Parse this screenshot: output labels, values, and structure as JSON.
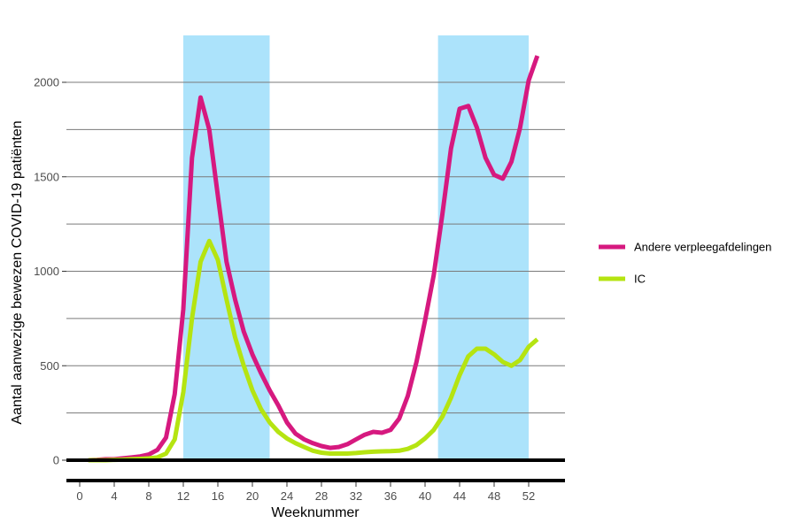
{
  "chart_data": {
    "type": "line",
    "title": "",
    "xlabel": "Weeknummer",
    "ylabel": "Aantal aanwezige bewezen COVID-19 patiënten",
    "xlim": [
      -1.5,
      55
    ],
    "ylim": [
      -120,
      2250
    ],
    "xticks": [
      0,
      4,
      8,
      12,
      16,
      20,
      24,
      28,
      32,
      36,
      40,
      44,
      48,
      52
    ],
    "yticks": [
      0,
      500,
      1000,
      1500,
      2000
    ],
    "grid_minor_y": [
      250,
      750,
      1250,
      1750
    ],
    "shaded_periods": [
      {
        "start": 12,
        "end": 22
      },
      {
        "start": 41.5,
        "end": 52
      }
    ],
    "legend_position": "right",
    "series": [
      {
        "name": "Andere verpleegafdelingen",
        "color": "#d6197f",
        "x": [
          1,
          2,
          3,
          4,
          5,
          6,
          7,
          8,
          9,
          10,
          11,
          12,
          13,
          14,
          15,
          16,
          17,
          18,
          19,
          20,
          21,
          22,
          23,
          24,
          25,
          26,
          27,
          28,
          29,
          30,
          31,
          32,
          33,
          34,
          35,
          36,
          37,
          38,
          39,
          40,
          41,
          42,
          43,
          44,
          45,
          46,
          47,
          48,
          49,
          50,
          51,
          52,
          53
        ],
        "values": [
          0,
          2,
          5,
          5,
          10,
          15,
          20,
          30,
          55,
          120,
          350,
          800,
          1600,
          1920,
          1750,
          1400,
          1050,
          850,
          680,
          560,
          460,
          370,
          290,
          200,
          140,
          110,
          90,
          75,
          65,
          70,
          85,
          110,
          135,
          150,
          145,
          160,
          220,
          340,
          520,
          740,
          980,
          1300,
          1650,
          1860,
          1875,
          1760,
          1600,
          1510,
          1490,
          1580,
          1760,
          2010,
          2140
        ]
      },
      {
        "name": "IC",
        "color": "#b5e411",
        "x": [
          1,
          2,
          3,
          4,
          5,
          6,
          7,
          8,
          9,
          10,
          11,
          12,
          13,
          14,
          15,
          16,
          17,
          18,
          19,
          20,
          21,
          22,
          23,
          24,
          25,
          26,
          27,
          28,
          29,
          30,
          31,
          32,
          33,
          34,
          35,
          36,
          37,
          38,
          39,
          40,
          41,
          42,
          43,
          44,
          45,
          46,
          47,
          48,
          49,
          50,
          51,
          52,
          53
        ],
        "values": [
          0,
          0,
          0,
          2,
          3,
          5,
          7,
          10,
          15,
          35,
          110,
          360,
          750,
          1050,
          1160,
          1060,
          850,
          650,
          500,
          370,
          270,
          200,
          150,
          115,
          90,
          70,
          50,
          40,
          35,
          35,
          35,
          38,
          42,
          45,
          47,
          48,
          50,
          60,
          80,
          115,
          160,
          230,
          330,
          450,
          550,
          590,
          590,
          560,
          520,
          500,
          530,
          600,
          640
        ]
      }
    ]
  }
}
